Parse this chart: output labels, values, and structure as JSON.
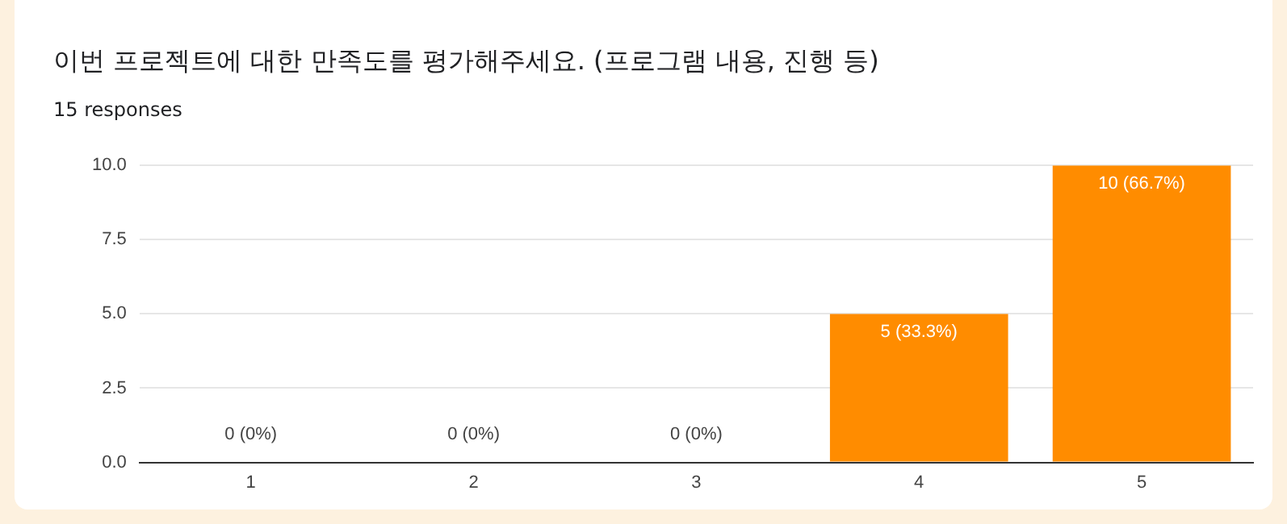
{
  "chart_data": {
    "type": "bar",
    "title": "이번 프로젝트에  대한 만족도를 평가해주세요. (프로그램 내용, 진행 등)",
    "subtitle": "15 responses",
    "categories": [
      "1",
      "2",
      "3",
      "4",
      "5"
    ],
    "values": [
      0,
      0,
      0,
      5,
      10
    ],
    "value_labels": [
      "0 (0%)",
      "0 (0%)",
      "0 (0%)",
      "5 (33.3%)",
      "10 (66.7%)"
    ],
    "color": "#ff8c00",
    "ylim": [
      0,
      10
    ],
    "yticks": [
      {
        "value": 0,
        "label": "0.0"
      },
      {
        "value": 2.5,
        "label": "2.5"
      },
      {
        "value": 5,
        "label": "5.0"
      },
      {
        "value": 7.5,
        "label": "7.5"
      },
      {
        "value": 10,
        "label": "10.0"
      }
    ],
    "grid": "y",
    "legend": false
  }
}
